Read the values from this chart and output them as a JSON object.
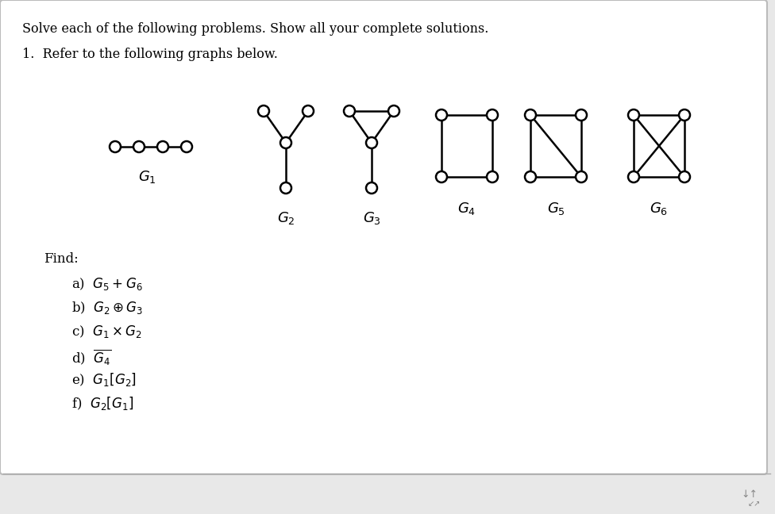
{
  "title_line1": "Solve each of the following problems. Show all your complete solutions.",
  "item1": "1.  Refer to the following graphs below.",
  "find_label": "Find:",
  "find_items": [
    "a)  $G_5 + G_6$",
    "b)  $G_2 \\oplus G_3$",
    "c)  $G_1 \\times G_2$",
    "d)  $\\overline{G_4}$",
    "e)  $G_1[G_2]$",
    "f)  $G_2[G_1]$"
  ],
  "graph_labels": [
    "$G_1$",
    "$G_2$",
    "$G_3$",
    "$G_4$",
    "$G_5$",
    "$G_6$"
  ],
  "bg_color": "#eeeeee",
  "node_r": 7,
  "line_width": 1.8
}
